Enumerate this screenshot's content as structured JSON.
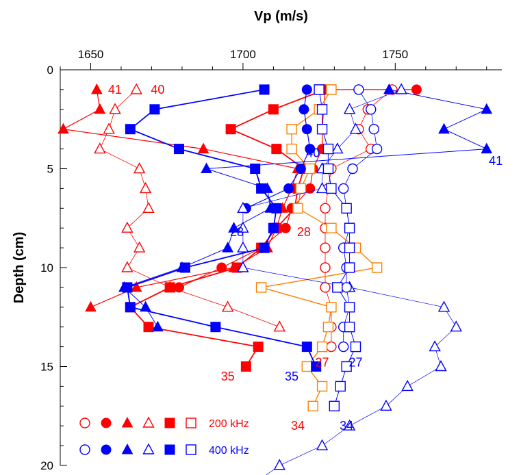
{
  "chart_data": {
    "type": "line",
    "xlabel": "Vp (m/s)",
    "ylabel": "Depth (cm)",
    "xlim": [
      1640,
      1785
    ],
    "ylim": [
      0,
      20
    ],
    "x_axis_position": "top",
    "y_reversed": true,
    "xticks": [
      "1650",
      "1700",
      "1750"
    ],
    "yticks": [
      "0",
      "5",
      "10",
      "15",
      "20"
    ],
    "grid": false,
    "series": [
      {
        "freq": "200 kHz",
        "color": "#ff0000",
        "marker": "triangle",
        "filled": true,
        "line_width": 1.2,
        "points": [
          [
            1652,
            1
          ],
          [
            1653,
            2
          ],
          [
            1641,
            3
          ],
          [
            1687,
            4
          ],
          [
            1718,
            5
          ],
          [
            1716,
            6
          ],
          [
            1713,
            7
          ],
          [
            1711,
            8
          ],
          [
            1708,
            9
          ],
          [
            1697,
            10
          ],
          [
            1665,
            11
          ],
          [
            1650,
            12
          ]
        ]
      },
      {
        "freq": "200 kHz",
        "color": "#ff0000",
        "marker": "triangle",
        "filled": false,
        "line_width": 0.8,
        "points": [
          [
            1665,
            1
          ],
          [
            1658,
            2
          ],
          [
            1656,
            3
          ],
          [
            1653,
            4
          ],
          [
            1666,
            5
          ],
          [
            1668,
            6
          ],
          [
            1669,
            7
          ],
          [
            1662,
            8
          ],
          [
            1666,
            9
          ],
          [
            1662,
            10
          ],
          [
            1676,
            11
          ],
          [
            1695,
            12
          ],
          [
            1712,
            13
          ]
        ]
      },
      {
        "freq": "200 kHz",
        "color": "#ff0000",
        "marker": "square",
        "filled": true,
        "line_width": 1.8,
        "points": [
          [
            1727,
            1
          ],
          [
            1710,
            2
          ],
          [
            1696,
            3
          ],
          [
            1711,
            4
          ],
          [
            1720,
            5
          ],
          [
            1718,
            6
          ],
          [
            1717,
            7
          ],
          [
            1711,
            8
          ],
          [
            1706,
            9
          ],
          [
            1698,
            10
          ],
          [
            1676,
            11
          ],
          [
            1663,
            12
          ],
          [
            1669,
            13
          ],
          [
            1705,
            14
          ],
          [
            1701,
            15
          ]
        ]
      },
      {
        "freq": "200 kHz",
        "color": "#ff0000",
        "marker": "circle",
        "filled": true,
        "line_width": 1.2,
        "points": [
          [
            1757,
            1
          ],
          [
            1727,
            1
          ],
          [
            1726,
            3
          ],
          [
            1726,
            4
          ],
          [
            1723,
            5
          ],
          [
            1722,
            6
          ],
          [
            1716,
            7
          ],
          [
            1714,
            8
          ],
          [
            1706,
            9
          ],
          [
            1693,
            10
          ],
          [
            1679,
            11
          ]
        ]
      },
      {
        "freq": "200 kHz",
        "color": "#ff0000",
        "marker": "circle",
        "filled": false,
        "line_width": 0.8,
        "points": [
          [
            1749,
            1
          ],
          [
            1741,
            2
          ],
          [
            1738,
            3
          ],
          [
            1742,
            4
          ],
          [
            1729,
            5
          ],
          [
            1728,
            6
          ],
          [
            1727,
            7
          ],
          [
            1727,
            8
          ],
          [
            1727,
            9
          ],
          [
            1727,
            10
          ],
          [
            1727,
            11
          ],
          [
            1729,
            12
          ],
          [
            1729,
            13
          ],
          [
            1729,
            14
          ]
        ]
      },
      {
        "freq": "200 kHz",
        "color": "#ff7f00",
        "marker": "square",
        "filled": false,
        "line_width": 1.4,
        "points": [
          [
            1729,
            1
          ],
          [
            1725,
            2
          ],
          [
            1716,
            3
          ],
          [
            1716,
            4
          ],
          [
            1722,
            5
          ],
          [
            1719,
            6
          ],
          [
            1718,
            7
          ],
          [
            1729,
            8
          ],
          [
            1737,
            9
          ],
          [
            1744,
            10
          ],
          [
            1706,
            11
          ],
          [
            1729,
            12
          ],
          [
            1728,
            13
          ],
          [
            1726,
            14
          ],
          [
            1721,
            15
          ],
          [
            1726,
            16
          ],
          [
            1723,
            17
          ]
        ]
      },
      {
        "freq": "400 kHz",
        "color": "#0000ff",
        "marker": "square",
        "filled": true,
        "line_width": 1.8,
        "points": [
          [
            1707,
            1
          ],
          [
            1671,
            2
          ],
          [
            1663,
            3
          ],
          [
            1679,
            4
          ],
          [
            1704,
            5
          ],
          [
            1706,
            6
          ],
          [
            1711,
            7
          ],
          [
            1710,
            8
          ],
          [
            1707,
            9
          ],
          [
            1681,
            10
          ],
          [
            1662,
            11
          ],
          [
            1663,
            12
          ],
          [
            1691,
            13
          ],
          [
            1721,
            14
          ],
          [
            1724,
            15
          ]
        ]
      },
      {
        "freq": "400 kHz",
        "color": "#0000ff",
        "marker": "circle",
        "filled": true,
        "line_width": 1.2,
        "points": [
          [
            1721,
            1
          ],
          [
            1720,
            2
          ],
          [
            1721,
            3
          ],
          [
            1722,
            4
          ],
          [
            1719,
            5
          ],
          [
            1715,
            6
          ],
          [
            1701,
            7
          ]
        ]
      },
      {
        "freq": "400 kHz",
        "color": "#0000ff",
        "marker": "triangle",
        "filled": true,
        "line_width": 1.0,
        "points": [
          [
            1748,
            1
          ],
          [
            1780,
            2
          ],
          [
            1766,
            3
          ],
          [
            1780,
            4
          ],
          [
            1688,
            5
          ],
          [
            1708,
            6
          ],
          [
            1709,
            7
          ],
          [
            1697,
            8
          ],
          [
            1695,
            9
          ],
          [
            1680,
            10
          ],
          [
            1661,
            11
          ],
          [
            1668,
            12
          ],
          [
            1672,
            13
          ]
        ]
      },
      {
        "freq": "400 kHz",
        "color": "#0000ff",
        "marker": "triangle",
        "filled": false,
        "line_width": 0.7,
        "points": [
          [
            1752,
            1
          ],
          [
            1735,
            2
          ],
          [
            1737,
            3
          ],
          [
            1731,
            4
          ],
          [
            1726,
            5
          ],
          [
            1726,
            6
          ],
          [
            1700,
            7
          ],
          [
            1700,
            8
          ],
          [
            1700,
            9
          ],
          [
            1700,
            10
          ],
          [
            1735,
            11
          ],
          [
            1766,
            12
          ],
          [
            1770,
            13
          ],
          [
            1763,
            14
          ],
          [
            1765,
            15
          ],
          [
            1754,
            16
          ],
          [
            1747,
            17
          ],
          [
            1735,
            18
          ],
          [
            1726,
            19
          ],
          [
            1712,
            20
          ],
          [
            1703,
            21
          ]
        ]
      },
      {
        "freq": "400 kHz",
        "color": "#0000ff",
        "marker": "circle",
        "filled": false,
        "line_width": 0.8,
        "points": [
          [
            1738,
            1
          ],
          [
            1742,
            2
          ],
          [
            1743,
            3
          ],
          [
            1744,
            4
          ],
          [
            1736,
            5
          ],
          [
            1733,
            6
          ],
          [
            1734,
            7
          ],
          [
            1735,
            8
          ],
          [
            1733,
            9
          ],
          [
            1734,
            10
          ],
          [
            1734,
            11
          ],
          [
            1735,
            12
          ],
          [
            1733,
            13
          ],
          [
            1733,
            14
          ]
        ]
      },
      {
        "freq": "400 kHz",
        "color": "#0000ff",
        "marker": "square",
        "filled": false,
        "line_width": 1.0,
        "points": [
          [
            1725,
            1
          ],
          [
            1726,
            2
          ],
          [
            1726,
            3
          ],
          [
            1728,
            4
          ],
          [
            1728,
            5
          ],
          [
            1729,
            6
          ],
          [
            1734,
            7
          ],
          [
            1735,
            8
          ],
          [
            1735,
            9
          ],
          [
            1735,
            10
          ],
          [
            1731,
            11
          ],
          [
            1735,
            12
          ],
          [
            1735,
            13
          ],
          [
            1737,
            14
          ],
          [
            1734,
            15
          ],
          [
            1732,
            16
          ],
          [
            1730,
            17
          ]
        ]
      }
    ],
    "annotations": [
      {
        "text": "41",
        "color": "#ff0000",
        "x": 1658,
        "y": 1.0
      },
      {
        "text": "40",
        "color": "#ff0000",
        "x": 1672,
        "y": 1.0
      },
      {
        "text": "40",
        "color": "#0000ff",
        "x": 1723,
        "y": 4.2
      },
      {
        "text": "41",
        "color": "#0000ff",
        "x": 1783,
        "y": 4.6
      },
      {
        "text": "28",
        "color": "#0000ff",
        "x": 1698,
        "y": 8.2
      },
      {
        "text": "28",
        "color": "#ff0000",
        "x": 1720,
        "y": 8.2
      },
      {
        "text": "27",
        "color": "#ff0000",
        "x": 1726,
        "y": 14.8
      },
      {
        "text": "27",
        "color": "#0000ff",
        "x": 1737,
        "y": 14.8
      },
      {
        "text": "35",
        "color": "#ff0000",
        "x": 1695,
        "y": 15.5
      },
      {
        "text": "35",
        "color": "#0000ff",
        "x": 1716,
        "y": 15.5
      },
      {
        "text": "34",
        "color": "#ff0000",
        "x": 1718,
        "y": 18.0
      },
      {
        "text": "34",
        "color": "#0000ff",
        "x": 1734,
        "y": 18.0
      }
    ],
    "legend": {
      "placement": "bottom-left",
      "entries": [
        {
          "label": "200 kHz",
          "color": "#ff0000",
          "markers": [
            "circle-open",
            "circle-filled",
            "triangle-filled",
            "triangle-open",
            "square-filled",
            "square-open"
          ]
        },
        {
          "label": "400 kHz",
          "color": "#0000ff",
          "markers": [
            "circle-open",
            "circle-filled",
            "triangle-filled",
            "triangle-open",
            "square-filled",
            "square-open"
          ]
        }
      ]
    }
  }
}
